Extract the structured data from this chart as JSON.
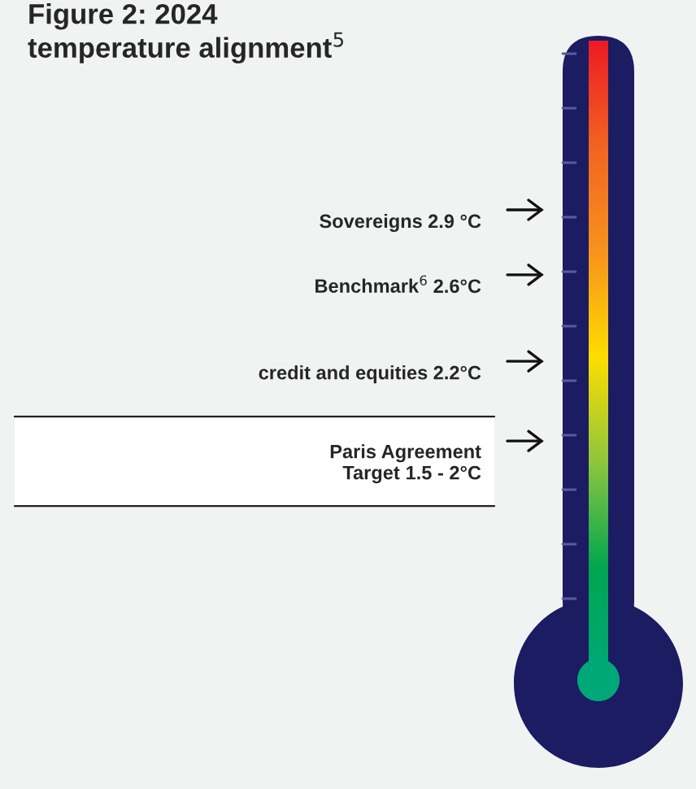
{
  "chart_data": {
    "type": "other",
    "title": "Figure 2: 2024\ntemperature alignment$^{5}$",
    "categories": [
      "Sovereigns",
      "Benchmark$^{6}$",
      "credit and equities",
      "Paris Agreement\nTarget"
    ],
    "values": [
      2.9,
      2.6,
      2.2,
      null
    ],
    "value_labels": [
      "2.9 °C",
      "2.6°C",
      "2.2°C",
      "1.5 - 2°C"
    ]
  }
}
